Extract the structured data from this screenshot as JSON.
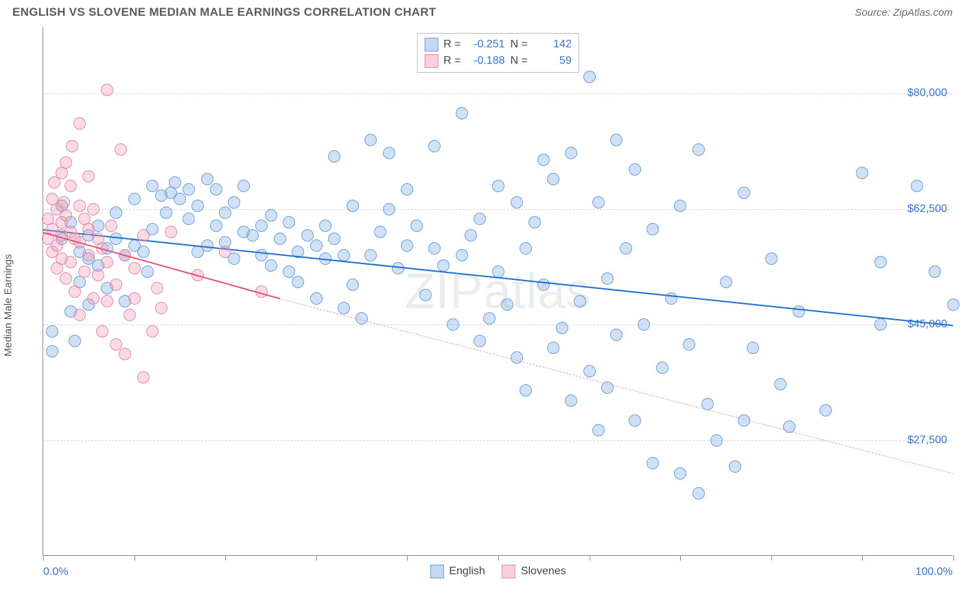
{
  "header": {
    "title": "ENGLISH VS SLOVENE MEDIAN MALE EARNINGS CORRELATION CHART",
    "source": "Source: ZipAtlas.com"
  },
  "watermark": "ZIPatlas",
  "chart": {
    "type": "scatter",
    "ylabel": "Median Male Earnings",
    "xlim": [
      0,
      100
    ],
    "ylim": [
      10000,
      90000
    ],
    "x_ticks_pct": [
      0,
      10,
      20,
      30,
      40,
      50,
      60,
      70,
      80,
      90,
      100
    ],
    "x_axis_labels": {
      "left": "0.0%",
      "right": "100.0%"
    },
    "y_gridlines": [
      {
        "value": 27500,
        "label": "$27,500"
      },
      {
        "value": 45000,
        "label": "$45,000"
      },
      {
        "value": 62500,
        "label": "$62,500"
      },
      {
        "value": 80000,
        "label": "$80,000"
      }
    ],
    "background_color": "#ffffff",
    "grid_color": "#d5d5d5",
    "axis_color": "#888888",
    "tick_label_color": "#3a72c8",
    "marker_radius": 9,
    "series": [
      {
        "name": "English",
        "fill": "rgba(120,170,225,0.35)",
        "stroke": "#6a9fd4",
        "stroke_width": 1,
        "r_value": "-0.251",
        "n_value": "142",
        "trend": {
          "x1": 0,
          "y1": 59500,
          "x2": 100,
          "y2": 45000,
          "color": "#1f6fd0",
          "width": 2,
          "dashed": false
        },
        "points": [
          [
            1,
            44000
          ],
          [
            1,
            41000
          ],
          [
            2,
            58000
          ],
          [
            2,
            63000
          ],
          [
            3,
            47000
          ],
          [
            3,
            60500
          ],
          [
            3.5,
            42500
          ],
          [
            4,
            56000
          ],
          [
            4,
            51500
          ],
          [
            5,
            55000
          ],
          [
            5,
            48000
          ],
          [
            5,
            58500
          ],
          [
            6,
            54000
          ],
          [
            6,
            60000
          ],
          [
            7,
            56500
          ],
          [
            7,
            50500
          ],
          [
            8,
            58000
          ],
          [
            8,
            62000
          ],
          [
            9,
            55500
          ],
          [
            9,
            48500
          ],
          [
            10,
            57000
          ],
          [
            10,
            64000
          ],
          [
            11,
            56000
          ],
          [
            11.5,
            53000
          ],
          [
            12,
            59500
          ],
          [
            12,
            66000
          ],
          [
            13,
            64500
          ],
          [
            13.5,
            62000
          ],
          [
            14,
            65000
          ],
          [
            14.5,
            66500
          ],
          [
            15,
            64000
          ],
          [
            16,
            61000
          ],
          [
            16,
            65500
          ],
          [
            17,
            63000
          ],
          [
            17,
            56000
          ],
          [
            18,
            57000
          ],
          [
            18,
            67000
          ],
          [
            19,
            65500
          ],
          [
            19,
            60000
          ],
          [
            20,
            57500
          ],
          [
            20,
            62000
          ],
          [
            21,
            55000
          ],
          [
            21,
            63500
          ],
          [
            22,
            59000
          ],
          [
            22,
            66000
          ],
          [
            23,
            58500
          ],
          [
            24,
            60000
          ],
          [
            24,
            55500
          ],
          [
            25,
            61500
          ],
          [
            25,
            54000
          ],
          [
            26,
            58000
          ],
          [
            27,
            53000
          ],
          [
            27,
            60500
          ],
          [
            28,
            56000
          ],
          [
            28,
            51500
          ],
          [
            29,
            58500
          ],
          [
            30,
            57000
          ],
          [
            30,
            49000
          ],
          [
            31,
            60000
          ],
          [
            31,
            55000
          ],
          [
            32,
            70500
          ],
          [
            32,
            58000
          ],
          [
            33,
            55500
          ],
          [
            33,
            47500
          ],
          [
            34,
            63000
          ],
          [
            34,
            51000
          ],
          [
            35,
            46000
          ],
          [
            36,
            73000
          ],
          [
            36,
            55500
          ],
          [
            37,
            59000
          ],
          [
            38,
            71000
          ],
          [
            38,
            62500
          ],
          [
            39,
            53500
          ],
          [
            40,
            65500
          ],
          [
            40,
            57000
          ],
          [
            41,
            60000
          ],
          [
            42,
            49500
          ],
          [
            43,
            56500
          ],
          [
            43,
            72000
          ],
          [
            44,
            54000
          ],
          [
            45,
            45000
          ],
          [
            46,
            77000
          ],
          [
            46,
            55500
          ],
          [
            47,
            58500
          ],
          [
            48,
            42500
          ],
          [
            48,
            61000
          ],
          [
            49,
            46000
          ],
          [
            50,
            53000
          ],
          [
            50,
            66000
          ],
          [
            51,
            48000
          ],
          [
            52,
            40000
          ],
          [
            52,
            63500
          ],
          [
            53,
            35000
          ],
          [
            53,
            56500
          ],
          [
            54,
            60500
          ],
          [
            55,
            70000
          ],
          [
            55,
            51000
          ],
          [
            56,
            41500
          ],
          [
            56,
            67000
          ],
          [
            57,
            44500
          ],
          [
            58,
            33500
          ],
          [
            58,
            71000
          ],
          [
            59,
            48500
          ],
          [
            60,
            82500
          ],
          [
            60,
            38000
          ],
          [
            61,
            63500
          ],
          [
            61,
            29000
          ],
          [
            62,
            52000
          ],
          [
            62,
            35500
          ],
          [
            63,
            43500
          ],
          [
            63,
            73000
          ],
          [
            64,
            56500
          ],
          [
            65,
            30500
          ],
          [
            65,
            68500
          ],
          [
            66,
            45000
          ],
          [
            67,
            24000
          ],
          [
            67,
            59500
          ],
          [
            68,
            38500
          ],
          [
            69,
            49000
          ],
          [
            70,
            22500
          ],
          [
            70,
            63000
          ],
          [
            71,
            42000
          ],
          [
            72,
            19500
          ],
          [
            72,
            71500
          ],
          [
            73,
            33000
          ],
          [
            74,
            27500
          ],
          [
            75,
            51500
          ],
          [
            76,
            23500
          ],
          [
            77,
            30500
          ],
          [
            77,
            65000
          ],
          [
            78,
            41500
          ],
          [
            80,
            55000
          ],
          [
            81,
            36000
          ],
          [
            82,
            29500
          ],
          [
            83,
            47000
          ],
          [
            86,
            32000
          ],
          [
            90,
            68000
          ],
          [
            92,
            45000
          ],
          [
            92,
            54500
          ],
          [
            96,
            66000
          ],
          [
            98,
            53000
          ],
          [
            100,
            48000
          ]
        ]
      },
      {
        "name": "Slovenes",
        "fill": "rgba(240,150,175,0.35)",
        "stroke": "#e28aa5",
        "stroke_width": 1,
        "r_value": "-0.188",
        "n_value": "59",
        "trend": {
          "x1": 0,
          "y1": 59000,
          "x2": 26,
          "y2": 49000,
          "color": "#e05080",
          "width": 2,
          "dashed": false
        },
        "trend_ext": {
          "x1": 26,
          "y1": 49000,
          "x2": 100,
          "y2": 22500,
          "color": "#e8a0b5",
          "width": 1,
          "dashed": true
        },
        "points": [
          [
            0.5,
            61000
          ],
          [
            0.5,
            58000
          ],
          [
            1,
            64000
          ],
          [
            1,
            56000
          ],
          [
            1,
            59500
          ],
          [
            1.2,
            66500
          ],
          [
            1.5,
            53500
          ],
          [
            1.5,
            62500
          ],
          [
            1.5,
            57000
          ],
          [
            2,
            60500
          ],
          [
            2,
            55000
          ],
          [
            2,
            68000
          ],
          [
            2,
            58500
          ],
          [
            2.3,
            63500
          ],
          [
            2.5,
            52000
          ],
          [
            2.5,
            69500
          ],
          [
            2.5,
            61500
          ],
          [
            3,
            54500
          ],
          [
            3,
            59000
          ],
          [
            3,
            66000
          ],
          [
            3.2,
            72000
          ],
          [
            3.5,
            58000
          ],
          [
            3.5,
            50000
          ],
          [
            4,
            63000
          ],
          [
            4,
            57500
          ],
          [
            4,
            46500
          ],
          [
            4,
            75500
          ],
          [
            4.5,
            61000
          ],
          [
            4.5,
            53000
          ],
          [
            5,
            55500
          ],
          [
            5,
            67500
          ],
          [
            5,
            59500
          ],
          [
            5.5,
            49000
          ],
          [
            5.5,
            62500
          ],
          [
            6,
            52500
          ],
          [
            6,
            58000
          ],
          [
            6.5,
            56500
          ],
          [
            6.5,
            44000
          ],
          [
            7,
            80500
          ],
          [
            7,
            54500
          ],
          [
            7,
            48500
          ],
          [
            7.5,
            60000
          ],
          [
            8,
            51000
          ],
          [
            8,
            42000
          ],
          [
            8.5,
            71500
          ],
          [
            9,
            55500
          ],
          [
            9,
            40500
          ],
          [
            9.5,
            46500
          ],
          [
            10,
            53500
          ],
          [
            10,
            49000
          ],
          [
            11,
            37000
          ],
          [
            11,
            58500
          ],
          [
            12,
            44000
          ],
          [
            12.5,
            50500
          ],
          [
            13,
            47500
          ],
          [
            14,
            59000
          ],
          [
            17,
            52500
          ],
          [
            20,
            56000
          ],
          [
            24,
            50000
          ]
        ]
      }
    ],
    "legend": {
      "items": [
        {
          "label": "English",
          "fill": "rgba(120,170,225,0.45)",
          "stroke": "#6a9fd4"
        },
        {
          "label": "Slovenes",
          "fill": "rgba(240,150,175,0.45)",
          "stroke": "#e28aa5"
        }
      ]
    }
  }
}
